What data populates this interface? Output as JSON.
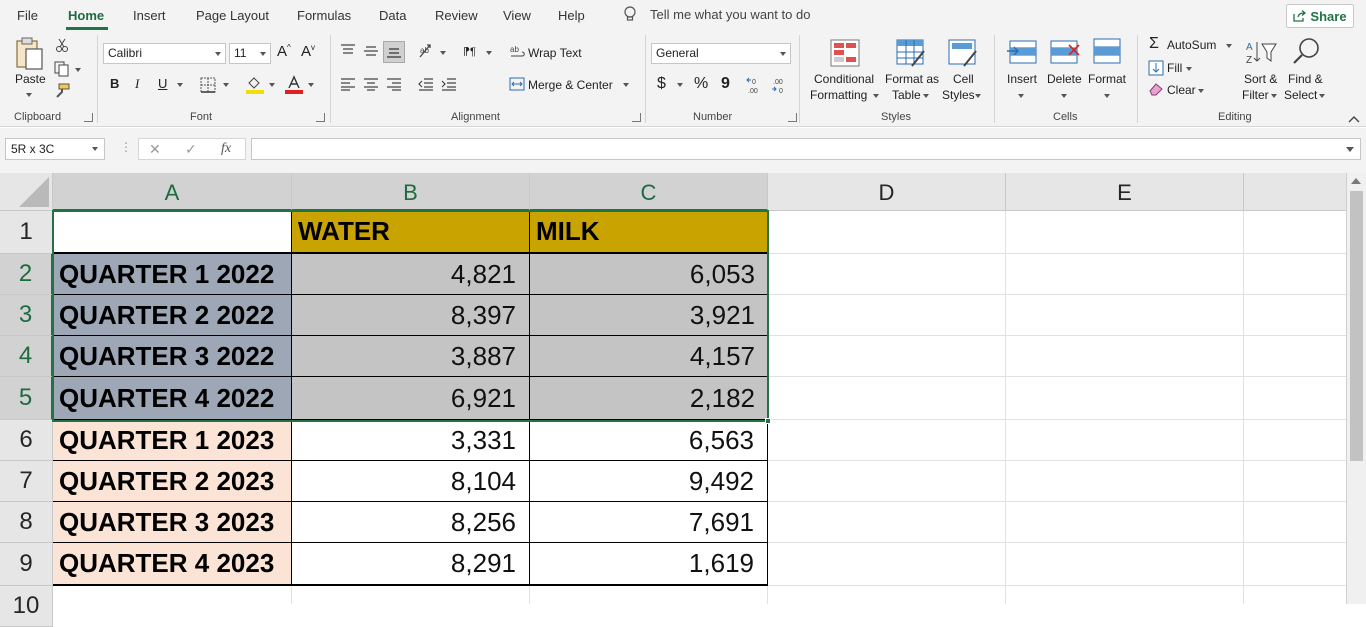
{
  "menu": {
    "tabs": [
      "File",
      "Home",
      "Insert",
      "Page Layout",
      "Formulas",
      "Data",
      "Review",
      "View",
      "Help"
    ],
    "tell_me": "Tell me what you want to do",
    "share": "Share"
  },
  "ribbon": {
    "clipboard": {
      "paste": "Paste",
      "label": "Clipboard"
    },
    "font": {
      "name": "Calibri",
      "size": "11",
      "bold": "B",
      "italic": "I",
      "underline": "U",
      "label": "Font"
    },
    "alignment": {
      "wrap_text": "Wrap Text",
      "merge_center": "Merge & Center",
      "label": "Alignment"
    },
    "number": {
      "format": "General",
      "currency": "$",
      "percent": "%",
      "comma": "9",
      "label": "Number"
    },
    "styles": {
      "conditional": [
        "Conditional",
        "Formatting"
      ],
      "format_table": [
        "Format as",
        "Table"
      ],
      "cell_styles": [
        "Cell",
        "Styles"
      ],
      "label": "Styles"
    },
    "cells": {
      "insert": "Insert",
      "delete": "Delete",
      "format": "Format",
      "label": "Cells"
    },
    "editing": {
      "autosum": "AutoSum",
      "fill": "Fill",
      "clear": "Clear",
      "sort_filter": [
        "Sort &",
        "Filter"
      ],
      "find_select": [
        "Find &",
        "Select"
      ],
      "label": "Editing"
    }
  },
  "formula_bar": {
    "name_box": "5R x 3C",
    "fx": "fx",
    "value": ""
  },
  "sheet": {
    "columns": [
      "A",
      "B",
      "C",
      "D",
      "E"
    ],
    "rows": [
      "1",
      "2",
      "3",
      "4",
      "5",
      "6",
      "7",
      "8",
      "9",
      "10"
    ],
    "header_row": [
      "",
      "WATER",
      "MILK"
    ],
    "data": [
      {
        "label": "QUARTER 1 2022",
        "water": "4,821",
        "milk": "6,053"
      },
      {
        "label": "QUARTER 2 2022",
        "water": "8,397",
        "milk": "3,921"
      },
      {
        "label": "QUARTER 3 2022",
        "water": "3,887",
        "milk": "4,157"
      },
      {
        "label": "QUARTER 4 2022",
        "water": "6,921",
        "milk": "2,182"
      },
      {
        "label": "QUARTER 1 2023",
        "water": "3,331",
        "milk": "6,563"
      },
      {
        "label": "QUARTER 2 2023",
        "water": "8,104",
        "milk": "9,492"
      },
      {
        "label": "QUARTER 3 2023",
        "water": "8,256",
        "milk": "7,691"
      },
      {
        "label": "QUARTER 4 2023",
        "water": "8,291",
        "milk": "1,619"
      }
    ]
  },
  "colors": {
    "accent": "#217346",
    "header_fill": "#c9a300",
    "selected_label_fill": "#9ea7b6",
    "selected_value_fill": "#c4c4c4",
    "label_2023_fill": "#fbe4d6"
  }
}
